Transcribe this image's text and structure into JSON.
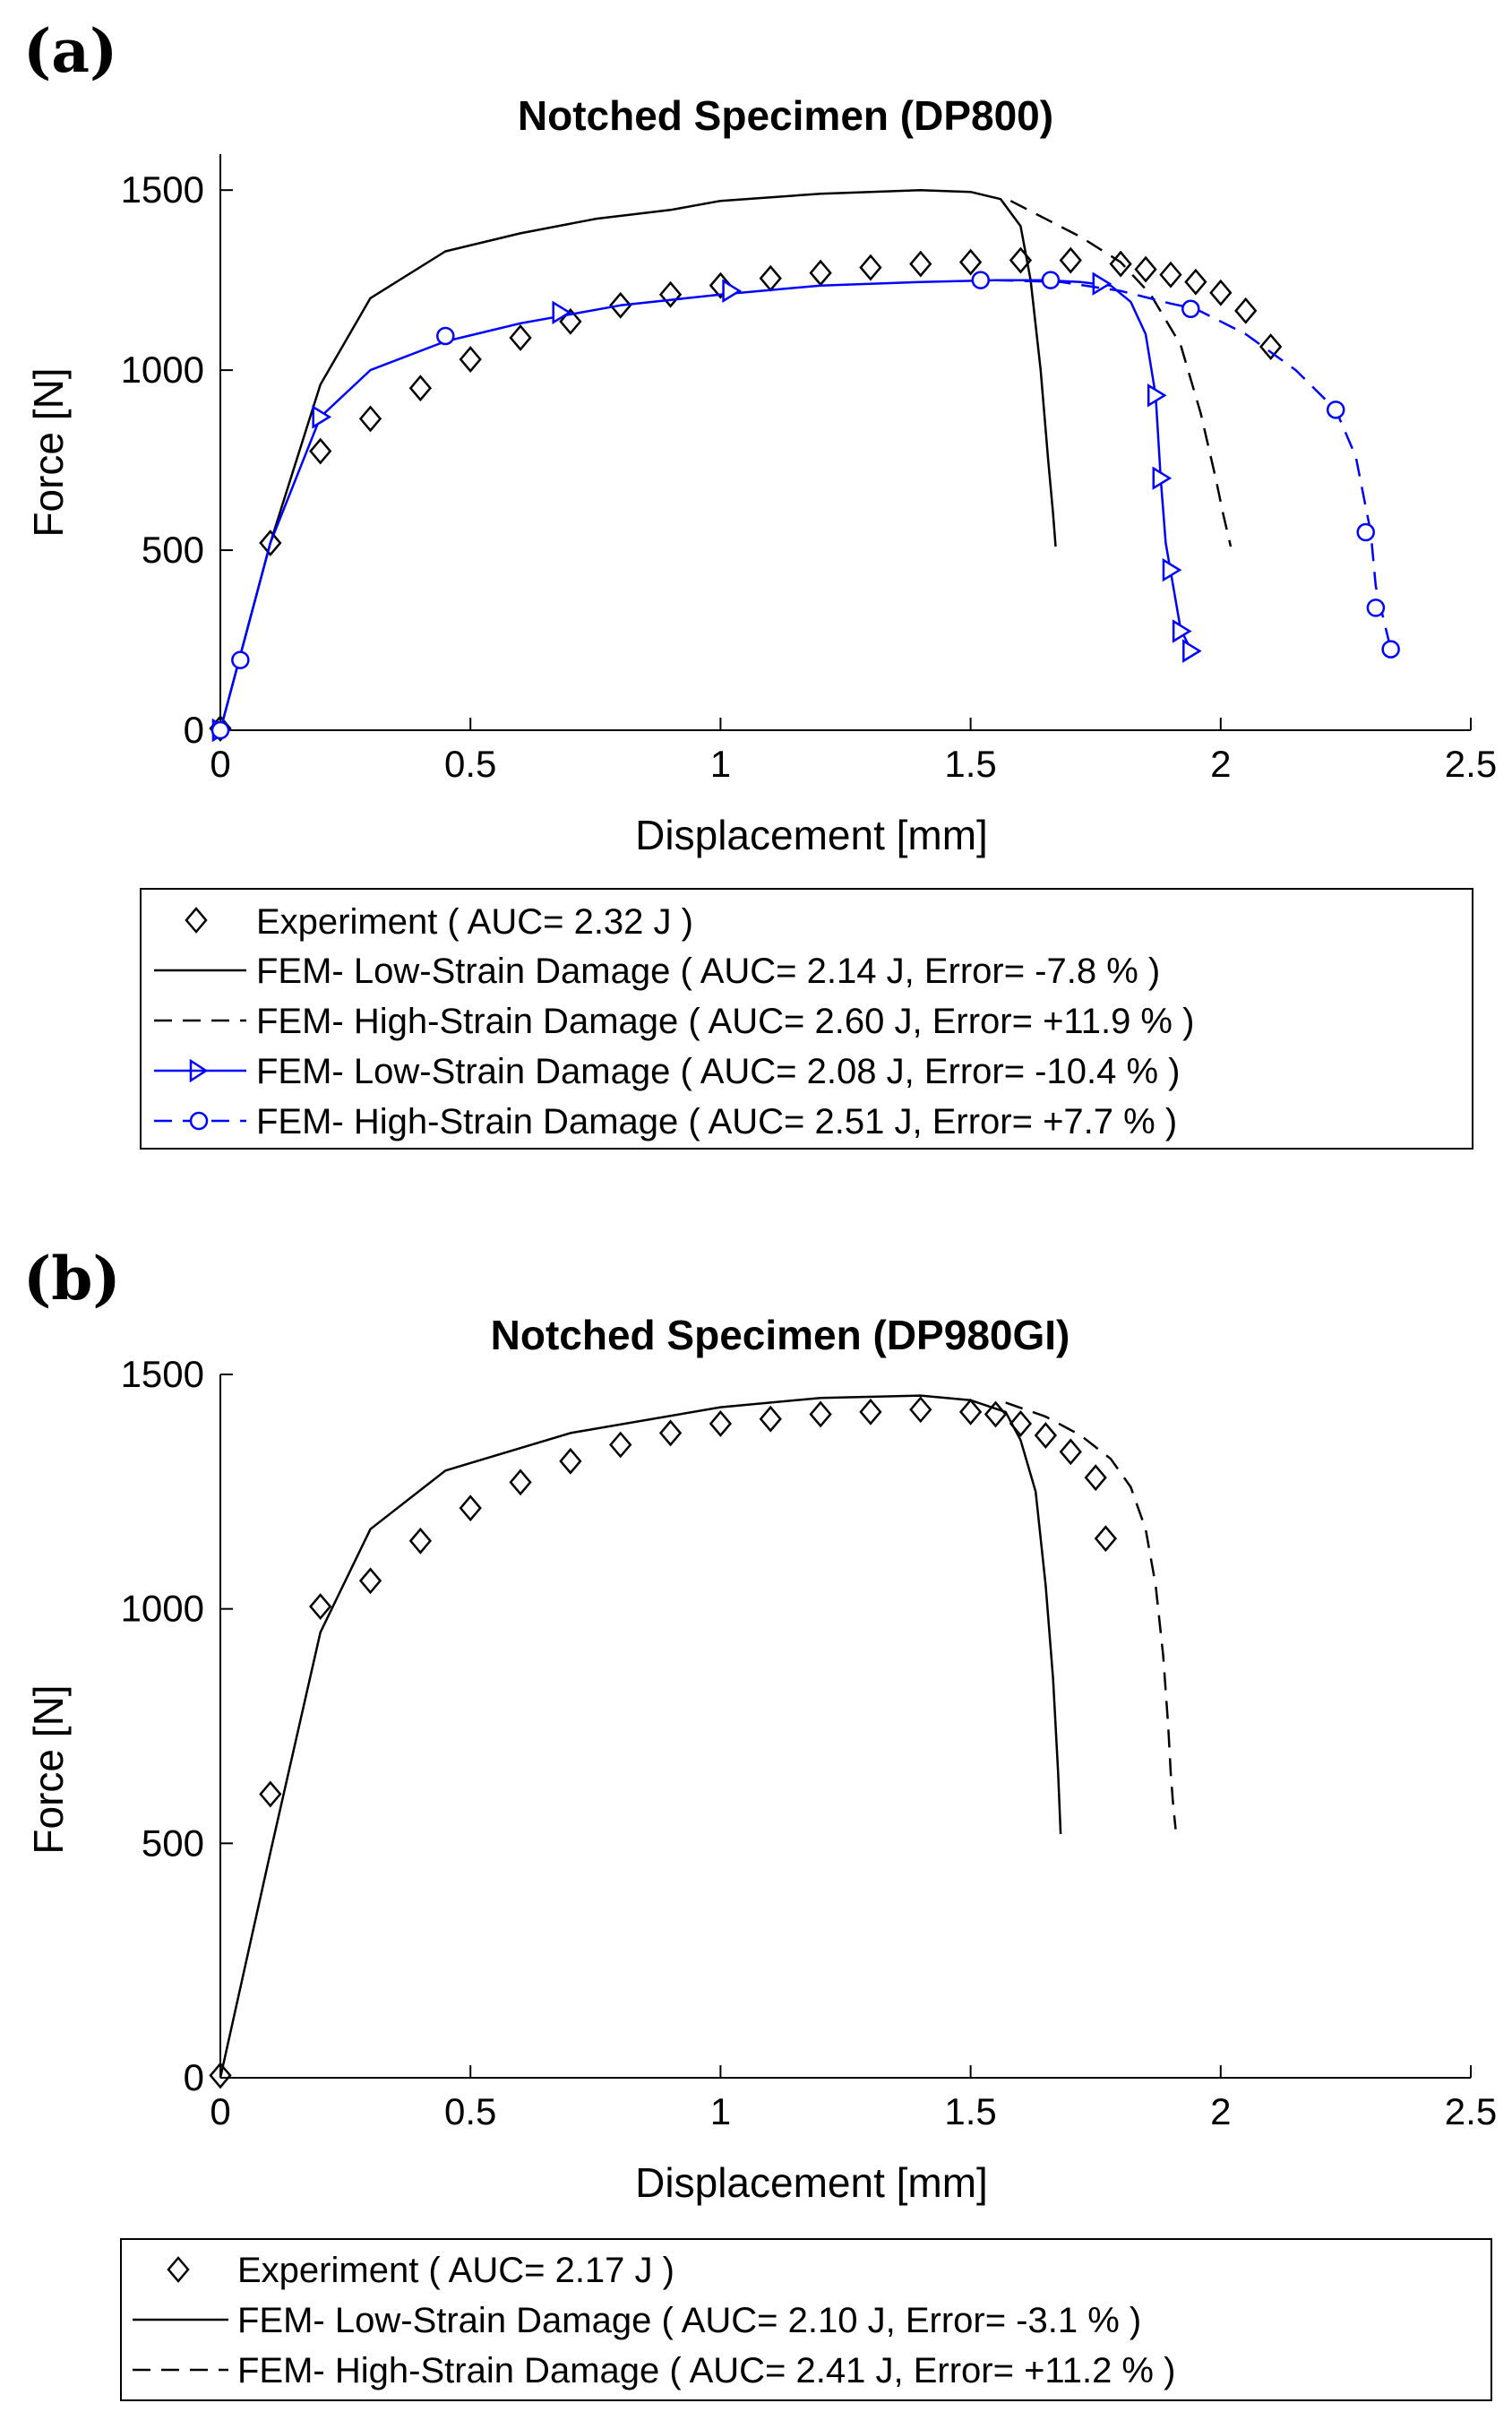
{
  "chart_data": [
    {
      "panel": "(a)",
      "type": "line",
      "title": "Notched Specimen (DP800)",
      "xlabel": "Displacement [mm]",
      "ylabel": "Force [N]",
      "xlim": [
        0,
        2.5
      ],
      "ylim": [
        0,
        1600
      ],
      "xticks": [
        0,
        0.5,
        1,
        1.5,
        2,
        2.5
      ],
      "xtick_labels": [
        "0",
        "0.5",
        "1",
        "1.5",
        "2",
        "2.5"
      ],
      "yticks": [
        0,
        500,
        1000,
        1500
      ],
      "ytick_labels": [
        "0",
        "500",
        "1000",
        "1500"
      ],
      "legend_position": "below",
      "series": [
        {
          "name": "Experiment ( AUC= 2.32 J )",
          "color": "#000000",
          "style": "none",
          "marker": "diamond",
          "x": [
            0,
            0.1,
            0.2,
            0.3,
            0.4,
            0.5,
            0.6,
            0.7,
            0.8,
            0.9,
            1.0,
            1.1,
            1.2,
            1.3,
            1.4,
            1.5,
            1.6,
            1.7,
            1.8,
            1.85,
            1.9,
            1.95,
            2.0,
            2.05,
            2.1
          ],
          "y": [
            5,
            520,
            775,
            865,
            950,
            1030,
            1090,
            1135,
            1180,
            1210,
            1235,
            1255,
            1270,
            1285,
            1295,
            1300,
            1305,
            1305,
            1295,
            1280,
            1265,
            1245,
            1215,
            1165,
            1065
          ]
        },
        {
          "name": "FEM- Low-Strain Damage ( AUC= 2.14 J, Error= -7.8 % )",
          "color": "#000000",
          "style": "solid",
          "marker": "none",
          "x": [
            0,
            0.1,
            0.2,
            0.3,
            0.45,
            0.6,
            0.75,
            0.9,
            1.0,
            1.2,
            1.4,
            1.5,
            1.56,
            1.6,
            1.62,
            1.64,
            1.655,
            1.665,
            1.67
          ],
          "y": [
            0,
            520,
            960,
            1200,
            1330,
            1380,
            1420,
            1445,
            1470,
            1490,
            1500,
            1495,
            1475,
            1400,
            1250,
            1000,
            750,
            600,
            510
          ]
        },
        {
          "name": "FEM- High-Strain Damage ( AUC= 2.60 J, Error= +11.9 % )",
          "color": "#000000",
          "style": "dashed",
          "marker": "none",
          "x": [
            1.58,
            1.65,
            1.72,
            1.8,
            1.86,
            1.92,
            1.96,
            1.99,
            2.005,
            2.015,
            2.02
          ],
          "y": [
            1470,
            1420,
            1370,
            1300,
            1210,
            1070,
            880,
            700,
            600,
            540,
            510
          ]
        },
        {
          "name": "FEM- Low-Strain Damage ( AUC= 2.08 J, Error= -10.4 % )",
          "color": "#0000ff",
          "style": "solid",
          "marker": "triangle-right",
          "x": [
            0,
            0.1,
            0.2,
            0.3,
            0.45,
            0.6,
            0.8,
            1.0,
            1.2,
            1.4,
            1.55,
            1.65,
            1.72,
            1.78,
            1.82,
            1.85,
            1.87,
            1.88,
            1.89,
            1.9,
            1.92,
            1.94
          ],
          "y": [
            0,
            520,
            870,
            1000,
            1080,
            1130,
            1180,
            1210,
            1235,
            1245,
            1250,
            1250,
            1245,
            1235,
            1190,
            1100,
            930,
            700,
            520,
            440,
            280,
            225
          ],
          "marker_x": [
            0,
            0.2,
            0.68,
            1.02,
            1.76,
            1.87,
            1.88,
            1.9,
            1.92,
            1.94
          ],
          "marker_y": [
            0,
            870,
            1160,
            1220,
            1240,
            930,
            700,
            445,
            275,
            220
          ]
        },
        {
          "name": "FEM- High-Strain Damage ( AUC= 2.51 J, Error= +7.7 % )",
          "color": "#0000ff",
          "style": "dashed",
          "marker": "circle",
          "x": [
            1.55,
            1.68,
            1.8,
            1.9,
            1.95,
            2.05,
            2.15,
            2.23,
            2.27,
            2.29,
            2.3,
            2.31,
            2.32,
            2.34
          ],
          "y": [
            1250,
            1245,
            1220,
            1185,
            1170,
            1100,
            1000,
            890,
            760,
            620,
            550,
            400,
            340,
            225
          ],
          "marker_x": [
            0,
            0.04,
            0.45,
            1.52,
            1.66,
            1.94,
            2.23,
            2.29,
            2.31,
            2.34
          ],
          "marker_y": [
            0,
            195,
            1095,
            1250,
            1250,
            1170,
            890,
            550,
            340,
            225
          ]
        }
      ]
    },
    {
      "panel": "(b)",
      "type": "line",
      "title": "Notched Specimen (DP980GI)",
      "xlabel": "Displacement [mm]",
      "ylabel": "Force [N]",
      "xlim": [
        0,
        2.5
      ],
      "ylim": [
        0,
        1500
      ],
      "xticks": [
        0,
        0.5,
        1,
        1.5,
        2,
        2.5
      ],
      "xtick_labels": [
        "0",
        "0.5",
        "1",
        "1.5",
        "2",
        "2.5"
      ],
      "yticks": [
        0,
        500,
        1000,
        1500
      ],
      "ytick_labels": [
        "0",
        "500",
        "1000",
        "1500"
      ],
      "legend_position": "below",
      "series": [
        {
          "name": "Experiment ( AUC= 2.17 J )",
          "color": "#000000",
          "style": "none",
          "marker": "diamond",
          "x": [
            0,
            0.1,
            0.2,
            0.3,
            0.4,
            0.5,
            0.6,
            0.7,
            0.8,
            0.9,
            1.0,
            1.1,
            1.2,
            1.3,
            1.4,
            1.5,
            1.55,
            1.6,
            1.65,
            1.7,
            1.75,
            1.77
          ],
          "y": [
            5,
            605,
            1005,
            1060,
            1145,
            1215,
            1270,
            1315,
            1350,
            1375,
            1395,
            1405,
            1415,
            1420,
            1425,
            1420,
            1415,
            1395,
            1370,
            1335,
            1280,
            1150
          ]
        },
        {
          "name": "FEM- Low-Strain Damage ( AUC= 2.10 J, Error= -3.1 % )",
          "color": "#000000",
          "style": "solid",
          "marker": "none",
          "x": [
            0,
            0.1,
            0.2,
            0.3,
            0.45,
            0.7,
            1.0,
            1.2,
            1.4,
            1.5,
            1.57,
            1.6,
            1.63,
            1.65,
            1.665,
            1.675,
            1.68
          ],
          "y": [
            0,
            480,
            950,
            1170,
            1295,
            1375,
            1430,
            1450,
            1455,
            1445,
            1420,
            1360,
            1250,
            1050,
            850,
            650,
            520
          ]
        },
        {
          "name": "FEM- High-Strain Damage ( AUC= 2.41 J, Error= +11.2 % )",
          "color": "#000000",
          "style": "dashed",
          "marker": "none",
          "x": [
            1.57,
            1.65,
            1.72,
            1.78,
            1.82,
            1.85,
            1.87,
            1.885,
            1.895,
            1.9,
            1.905,
            1.91
          ],
          "y": [
            1440,
            1410,
            1370,
            1320,
            1260,
            1170,
            1050,
            900,
            750,
            650,
            580,
            530
          ]
        }
      ]
    }
  ],
  "legend_a": {
    "items": [
      "Experiment ( AUC= 2.32 J )",
      "FEM- Low-Strain Damage ( AUC= 2.14 J, Error= -7.8 % )",
      "FEM- High-Strain Damage ( AUC= 2.60 J, Error= +11.9 % )",
      "FEM- Low-Strain Damage ( AUC= 2.08 J, Error= -10.4 % )",
      "FEM- High-Strain Damage ( AUC= 2.51 J, Error= +7.7 % )"
    ]
  },
  "legend_b": {
    "items": [
      "Experiment ( AUC= 2.17 J )",
      "FEM- Low-Strain Damage ( AUC= 2.10 J, Error= -3.1 % )",
      "FEM- High-Strain Damage ( AUC= 2.41 J, Error= +11.2 % )"
    ]
  }
}
